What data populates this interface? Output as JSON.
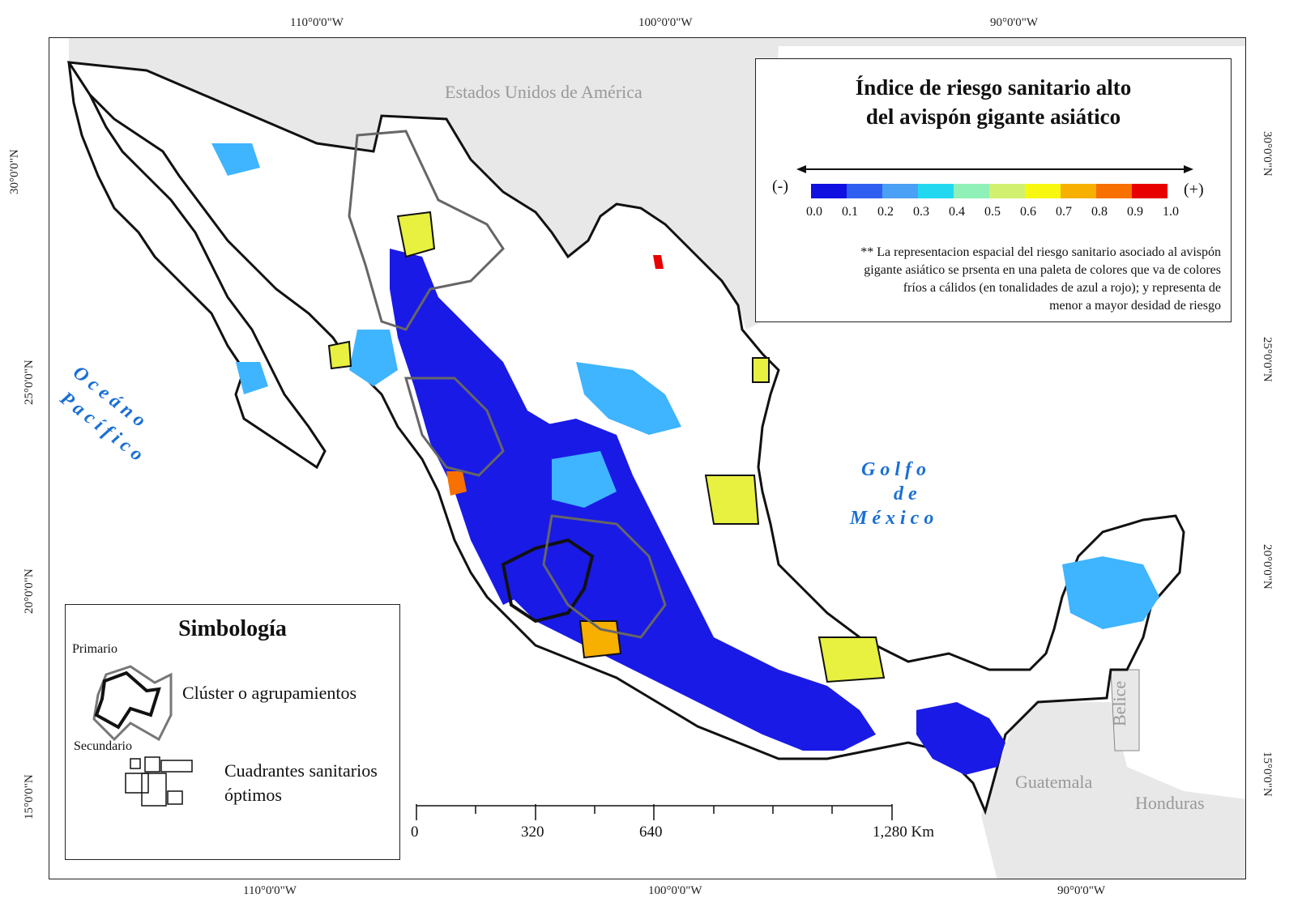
{
  "graticule": {
    "top": [
      "110°0'0\"W",
      "100°0'0\"W",
      "90°0'0\"W"
    ],
    "bottom": [
      "110°0'0\"W",
      "100°0'0\"W",
      "90°0'0\"W"
    ],
    "left": [
      "30°0'0\"N",
      "25°0'0\"N",
      "20°0'0\"N",
      "15°0'0\"N"
    ],
    "right": [
      "30°0'0\"N",
      "25°0'0\"N",
      "20°0'0\"N",
      "15°0'0\"N"
    ]
  },
  "map_labels": {
    "usa": "Estados Unidos de América",
    "pacific_line1": "O c e á n o",
    "pacific_line2": "P a c í f i c o",
    "gulf_line1": "G o l f o",
    "gulf_line2": "d e",
    "gulf_line3": "M é x i c o",
    "belize": "Belice",
    "guatemala": "Guatemala",
    "honduras": "Honduras"
  },
  "colors": {
    "land": "#ffffff",
    "neighbors": "#e8e8e8",
    "low_risk": "#1a1ae6",
    "mid_risk": "#3fb4ff",
    "high_risk": "#e8f040",
    "ocean_text": "#1a6fd4"
  },
  "title": {
    "line1": "Índice de riesgo sanitario alto",
    "line2": "del avispón gigante asiático",
    "minus": "(-)",
    "plus": "(+)",
    "ticks": [
      "0.0",
      "0.1",
      "0.2",
      "0.3",
      "0.4",
      "0.5",
      "0.6",
      "0.7",
      "0.8",
      "0.9",
      "1.0"
    ],
    "palette": [
      "#1010e0",
      "#2f5ff0",
      "#4aa0f5",
      "#22d8f0",
      "#8ff0b8",
      "#d2f070",
      "#f7f710",
      "#f7b000",
      "#f77000",
      "#e80000"
    ],
    "note_line1": "** La representacion espacial del riesgo sanitario asociado al avispón",
    "note_line2": "gigante asiático se prsenta en una paleta de colores que va de colores",
    "note_line3": "fríos a cálidos (en tonalidades de azul a rojo); y representa de",
    "note_line4": "menor a mayor desidad de riesgo"
  },
  "legend": {
    "heading": "Simbología",
    "primary": "Primario",
    "secondary": "Secundario",
    "cluster": "Clúster o agrupamientos",
    "quadrants_line1": "Cuadrantes sanitarios",
    "quadrants_line2": "óptimos"
  },
  "scale": {
    "labels": [
      "0",
      "320",
      "640",
      "1,280 Km"
    ]
  }
}
